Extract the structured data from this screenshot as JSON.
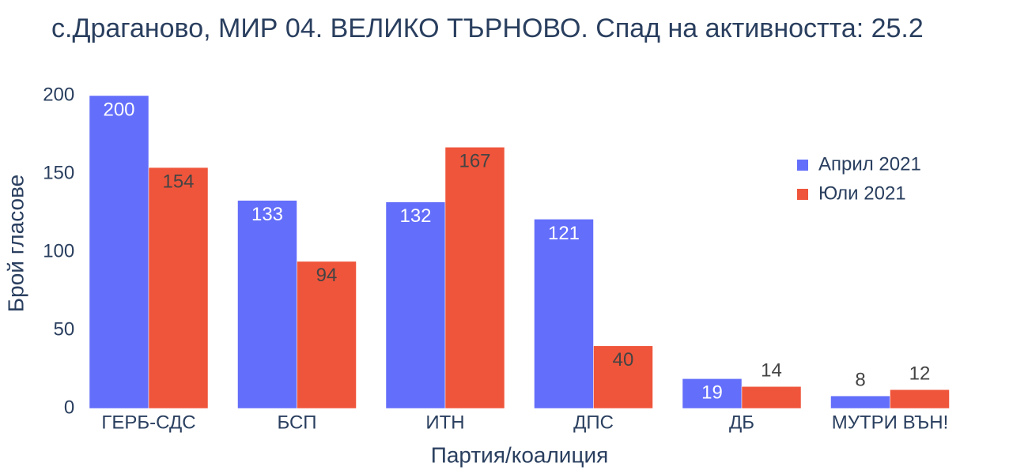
{
  "chart_data": {
    "type": "bar",
    "title": "с.Драганово, МИР 04. ВЕЛИКО ТЪРНОВО. Спад на активността: 25.2",
    "x_label": "Партия/коалиция",
    "y_label": "Брой гласове",
    "categories": [
      "ГЕРБ-СДС",
      "БСП",
      "ИТН",
      "ДПС",
      "ДБ",
      "МУТРИ ВЪН!"
    ],
    "series": [
      {
        "name": "Април 2021",
        "color": "#636efa",
        "values": [
          200,
          133,
          132,
          121,
          19,
          8
        ]
      },
      {
        "name": "Юли 2021",
        "color": "#ef553b",
        "values": [
          154,
          94,
          167,
          40,
          14,
          12
        ]
      }
    ],
    "ylim": [
      0,
      200
    ],
    "yticks": [
      0,
      50,
      100,
      150,
      200
    ],
    "grid": false,
    "legend": "top-right"
  }
}
